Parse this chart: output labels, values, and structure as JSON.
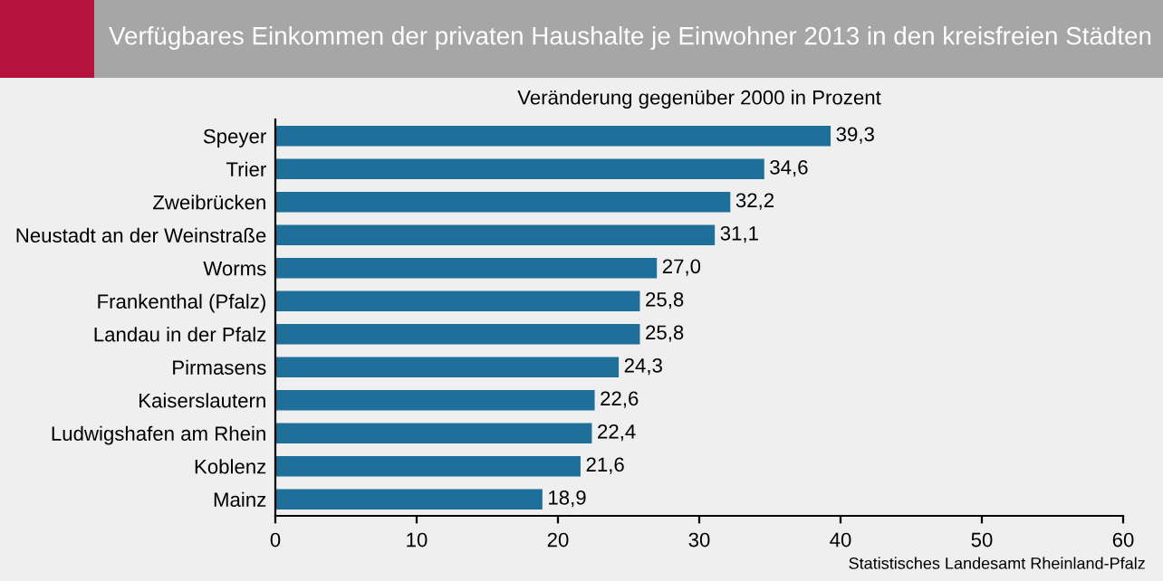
{
  "chart_data": {
    "type": "bar",
    "orientation": "horizontal",
    "title": "Verfügbares Einkommen der privaten Haushalte je Einwohner 2013 in den kreisfreien Städten",
    "subtitle": "Veränderung gegenüber 2000 in Prozent",
    "categories": [
      "Speyer",
      "Trier",
      "Zweibrücken",
      "Neustadt an der Weinstraße",
      "Worms",
      "Frankenthal (Pfalz)",
      "Landau in der Pfalz",
      "Pirmasens",
      "Kaiserslautern",
      "Ludwigshafen am Rhein",
      "Koblenz",
      "Mainz"
    ],
    "values": [
      39.3,
      34.6,
      32.2,
      31.1,
      27.0,
      25.8,
      25.8,
      24.3,
      22.6,
      22.4,
      21.6,
      18.9
    ],
    "value_labels": [
      "39,3",
      "34,6",
      "32,2",
      "31,1",
      "27,0",
      "25,8",
      "25,8",
      "24,3",
      "22,6",
      "22,4",
      "21,6",
      "18,9"
    ],
    "color": "#1f6f9b",
    "xlim": [
      0,
      60
    ],
    "xticks": [
      0,
      10,
      20,
      30,
      40,
      50,
      60
    ],
    "grid": false,
    "legend": false,
    "annotations": [
      "Statistisches Landesamt Rheinland-Pfalz"
    ]
  }
}
